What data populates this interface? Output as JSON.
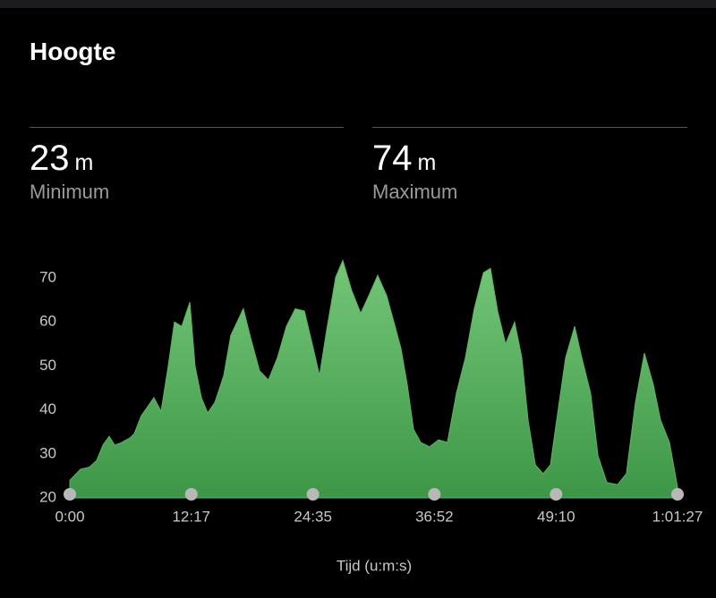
{
  "header": {
    "title": "Hoogte"
  },
  "stats": [
    {
      "value": 23,
      "unit": "m",
      "label": "Minimum"
    },
    {
      "value": 74,
      "unit": "m",
      "label": "Maximum"
    }
  ],
  "chart_data": {
    "type": "area",
    "x_label": "Tijd (u:m:s)",
    "color": "#5cb562",
    "x": [
      0,
      65,
      119,
      163,
      201,
      239,
      272,
      310,
      364,
      391,
      434,
      472,
      510,
      554,
      597,
      635,
      679,
      728,
      760,
      798,
      836,
      880,
      934,
      977,
      1015,
      1053,
      1097,
      1151,
      1205,
      1260,
      1314,
      1368,
      1423,
      1477,
      1515,
      1558,
      1613,
      1656,
      1710,
      1765,
      1814,
      1868,
      1922,
      1966,
      2009,
      2047,
      2085,
      2129,
      2183,
      2237,
      2291,
      2346,
      2400,
      2454,
      2509,
      2552,
      2596,
      2644,
      2699,
      2742,
      2780,
      2824,
      2872,
      2916,
      2954,
      3008,
      3063,
      3106,
      3160,
      3204,
      3258,
      3323,
      3377,
      3432,
      3486,
      3540,
      3584,
      3638,
      3687
    ],
    "values": [
      24,
      26.5,
      27,
      28.5,
      32,
      34,
      32,
      32.5,
      33.6,
      34.6,
      38.7,
      40.7,
      42.8,
      39.7,
      49.9,
      60,
      59,
      64.5,
      49.9,
      42.8,
      39.3,
      41.7,
      47.8,
      57,
      60,
      63,
      56.4,
      48.9,
      46.8,
      51.9,
      59,
      63,
      62.5,
      54,
      47.8,
      58,
      70.2,
      74,
      67.2,
      62,
      66,
      70.6,
      66,
      60,
      54,
      45.8,
      35.6,
      32.6,
      31.6,
      33.2,
      32.6,
      43.8,
      51.9,
      63,
      71.2,
      72.2,
      62.4,
      55,
      60,
      51.9,
      37.7,
      27.5,
      25.5,
      27.5,
      37.7,
      51.9,
      59,
      51.9,
      43.8,
      29.6,
      23.5,
      23,
      25.5,
      41.7,
      52.9,
      45.8,
      37.7,
      32.6,
      22.4
    ],
    "xlim": [
      0,
      3687
    ],
    "xticks": [
      {
        "value": 0,
        "label": "0:00"
      },
      {
        "value": 737,
        "label": "12:17"
      },
      {
        "value": 1475,
        "label": "24:35"
      },
      {
        "value": 2212,
        "label": "36:52"
      },
      {
        "value": 2950,
        "label": "49:10"
      },
      {
        "value": 3687,
        "label": "1:01:27"
      }
    ],
    "ylim": [
      20,
      75
    ],
    "yticks": [
      20,
      30,
      40,
      50,
      60,
      70
    ],
    "grid": false
  }
}
